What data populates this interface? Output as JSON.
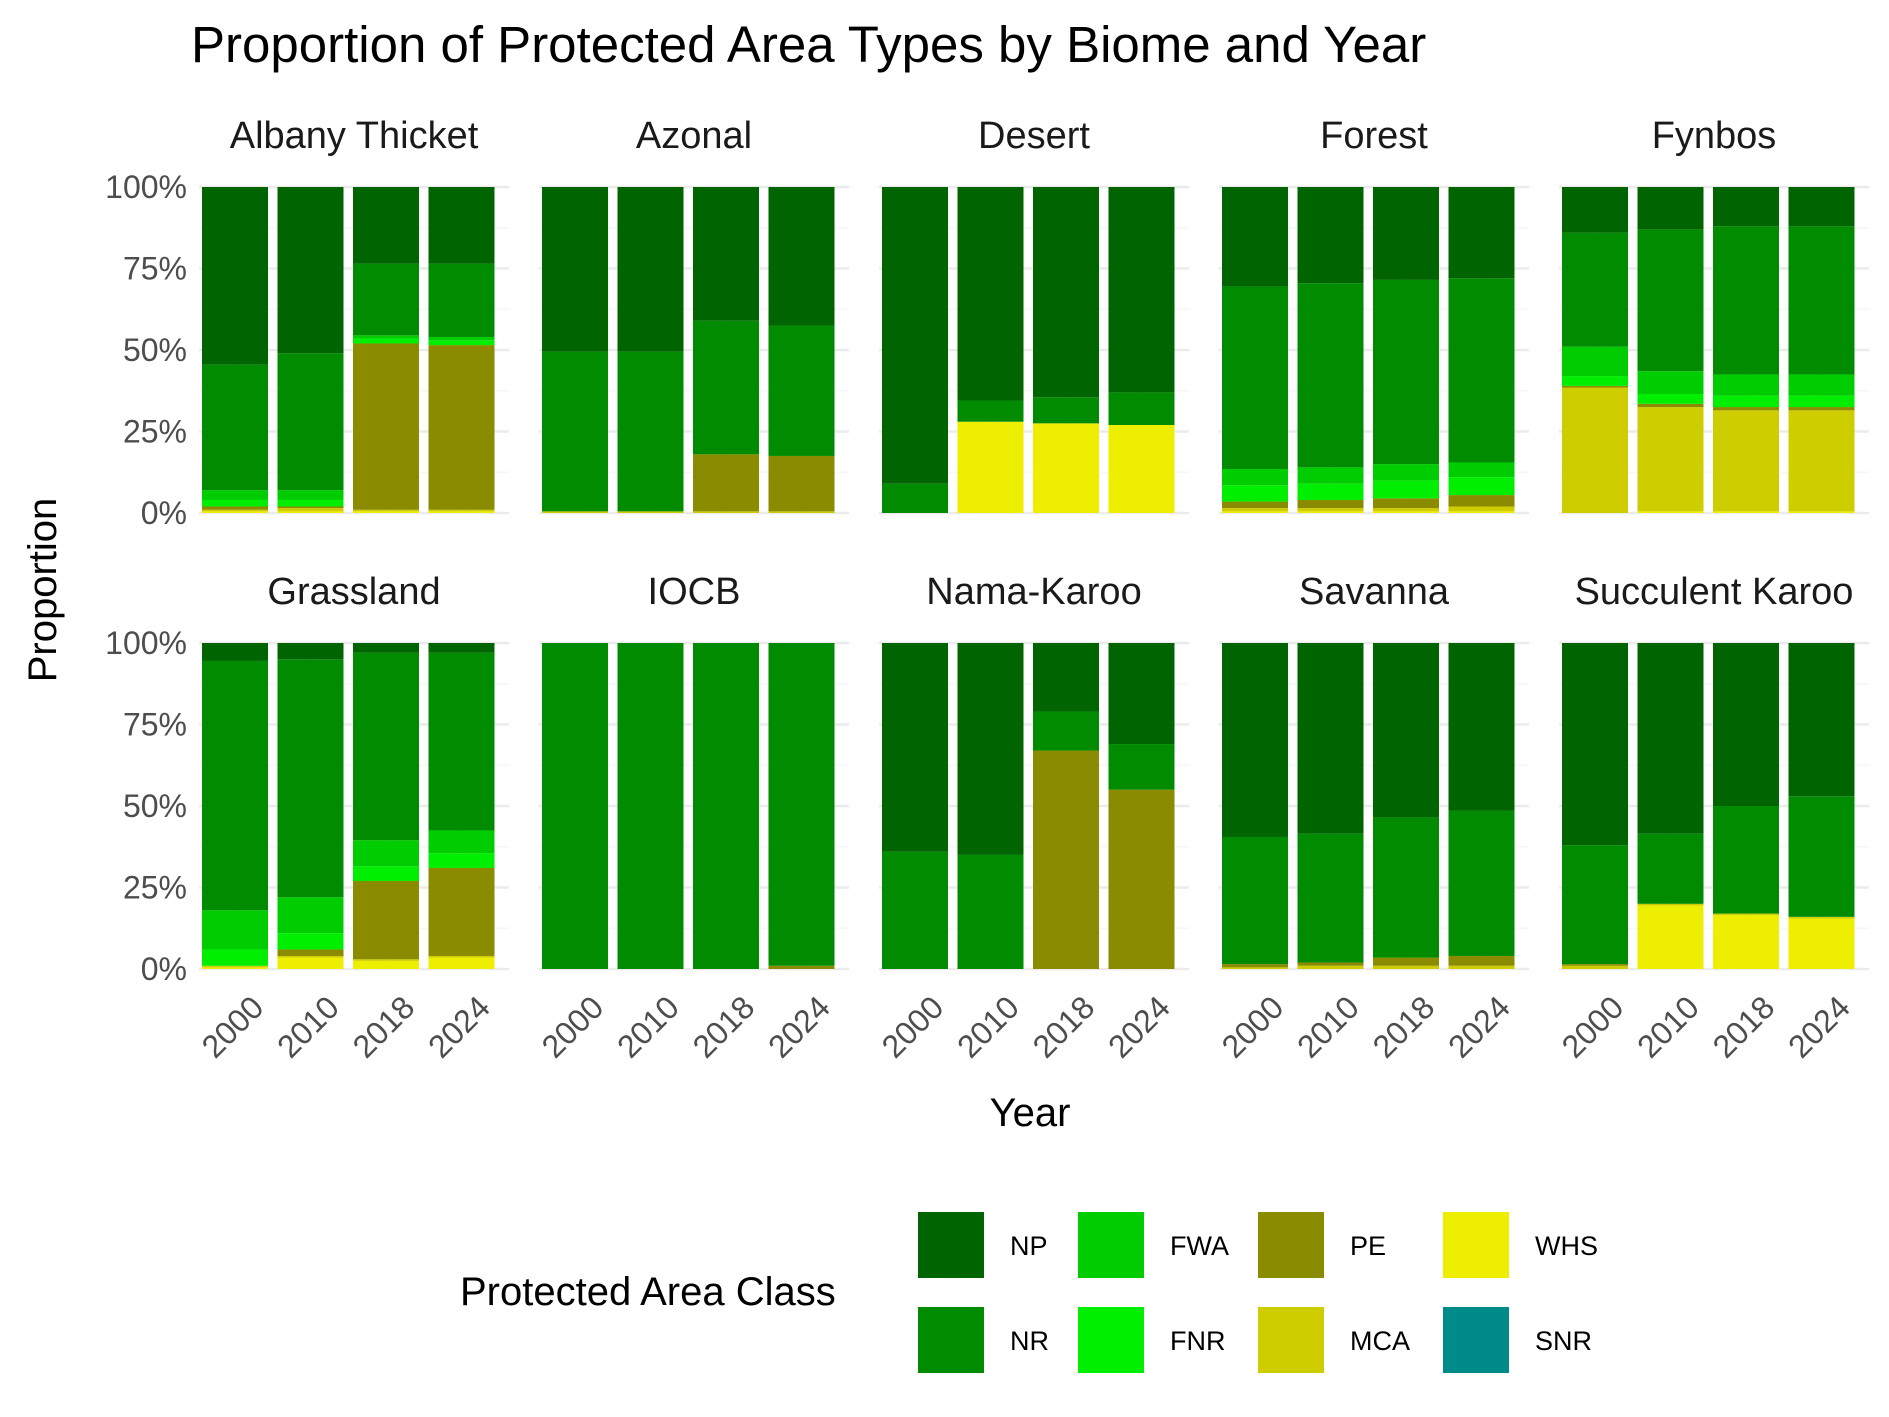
{
  "chart_data": {
    "type": "bar",
    "stacked": true,
    "normalized": true,
    "title": "Proportion of Protected Area Types by Biome and Year",
    "xlabel": "Year",
    "ylabel": "Proportion",
    "ylim": [
      0,
      1
    ],
    "yticks": [
      "0%",
      "25%",
      "50%",
      "75%",
      "100%"
    ],
    "ytick_values": [
      0,
      0.25,
      0.5,
      0.75,
      1
    ],
    "categories": [
      "2000",
      "2010",
      "2018",
      "2024"
    ],
    "grid": true,
    "facet_layout": "2 rows x 5 columns",
    "legend": {
      "title": "Protected Area Class",
      "placement": "bottom",
      "entries": [
        {
          "key": "NP",
          "label": "NP",
          "color": "#006400"
        },
        {
          "key": "NR",
          "label": "NR",
          "color": "#008B00"
        },
        {
          "key": "FWA",
          "label": "FWA",
          "color": "#00CD00"
        },
        {
          "key": "FNR",
          "label": "FNR",
          "color": "#00EE00"
        },
        {
          "key": "PE",
          "label": "PE",
          "color": "#8B8B00"
        },
        {
          "key": "MCA",
          "label": "MCA",
          "color": "#CDCD00"
        },
        {
          "key": "WHS",
          "label": "WHS",
          "color": "#EEEE00"
        },
        {
          "key": "SNR",
          "label": "SNR",
          "color": "#008B8B"
        }
      ]
    },
    "stack_order_bottom_to_top": [
      "WHS",
      "MCA",
      "PE",
      "FNR",
      "FWA",
      "NR",
      "NP"
    ],
    "facets": [
      {
        "biome": "Albany Thicket",
        "values": {
          "2000": {
            "WHS": 0.005,
            "MCA": 0.005,
            "PE": 0.01,
            "FNR": 0.02,
            "FWA": 0.03,
            "NR": 0.385,
            "NP": 0.545
          },
          "2010": {
            "WHS": 0.005,
            "MCA": 0.01,
            "PE": 0.005,
            "FNR": 0.02,
            "FWA": 0.03,
            "NR": 0.42,
            "NP": 0.51
          },
          "2018": {
            "WHS": 0.005,
            "MCA": 0.005,
            "PE": 0.51,
            "FNR": 0.015,
            "FWA": 0.01,
            "NR": 0.22,
            "NP": 0.235
          },
          "2024": {
            "WHS": 0.005,
            "MCA": 0.005,
            "PE": 0.505,
            "FNR": 0.015,
            "FWA": 0.01,
            "NR": 0.225,
            "NP": 0.235
          }
        }
      },
      {
        "biome": "Azonal",
        "values": {
          "2000": {
            "WHS": 0.0,
            "MCA": 0.005,
            "PE": 0.0,
            "FNR": 0.0,
            "FWA": 0.0,
            "NR": 0.49,
            "NP": 0.505
          },
          "2010": {
            "WHS": 0.0,
            "MCA": 0.005,
            "PE": 0.0,
            "FNR": 0.0,
            "FWA": 0.0,
            "NR": 0.49,
            "NP": 0.505
          },
          "2018": {
            "WHS": 0.0,
            "MCA": 0.005,
            "PE": 0.175,
            "FNR": 0.0,
            "FWA": 0.0,
            "NR": 0.41,
            "NP": 0.41
          },
          "2024": {
            "WHS": 0.0,
            "MCA": 0.005,
            "PE": 0.17,
            "FNR": 0.0,
            "FWA": 0.0,
            "NR": 0.4,
            "NP": 0.425
          }
        }
      },
      {
        "biome": "Desert",
        "values": {
          "2000": {
            "WHS": 0.0,
            "MCA": 0.0,
            "PE": 0.0,
            "FNR": 0.0,
            "FWA": 0.0,
            "NR": 0.09,
            "NP": 0.91
          },
          "2010": {
            "WHS": 0.28,
            "MCA": 0.0,
            "PE": 0.0,
            "FNR": 0.0,
            "FWA": 0.0,
            "NR": 0.065,
            "NP": 0.655
          },
          "2018": {
            "WHS": 0.275,
            "MCA": 0.0,
            "PE": 0.0,
            "FNR": 0.0,
            "FWA": 0.0,
            "NR": 0.08,
            "NP": 0.645
          },
          "2024": {
            "WHS": 0.27,
            "MCA": 0.0,
            "PE": 0.0,
            "FNR": 0.0,
            "FWA": 0.0,
            "NR": 0.1,
            "NP": 0.63
          }
        }
      },
      {
        "biome": "Forest",
        "values": {
          "2000": {
            "WHS": 0.005,
            "MCA": 0.01,
            "PE": 0.02,
            "FNR": 0.05,
            "FWA": 0.05,
            "NR": 0.56,
            "NP": 0.305
          },
          "2010": {
            "WHS": 0.005,
            "MCA": 0.01,
            "PE": 0.025,
            "FNR": 0.05,
            "FWA": 0.05,
            "NR": 0.565,
            "NP": 0.295
          },
          "2018": {
            "WHS": 0.005,
            "MCA": 0.01,
            "PE": 0.03,
            "FNR": 0.055,
            "FWA": 0.05,
            "NR": 0.565,
            "NP": 0.285
          },
          "2024": {
            "WHS": 0.005,
            "MCA": 0.015,
            "PE": 0.035,
            "FNR": 0.055,
            "FWA": 0.045,
            "NR": 0.565,
            "NP": 0.28
          }
        }
      },
      {
        "biome": "Fynbos",
        "values": {
          "2000": {
            "WHS": 0.0,
            "MCA": 0.385,
            "PE": 0.005,
            "FNR": 0.03,
            "FWA": 0.09,
            "NR": 0.35,
            "NP": 0.14
          },
          "2010": {
            "WHS": 0.005,
            "MCA": 0.32,
            "PE": 0.01,
            "FNR": 0.03,
            "FWA": 0.07,
            "NR": 0.435,
            "NP": 0.13
          },
          "2018": {
            "WHS": 0.005,
            "MCA": 0.31,
            "PE": 0.01,
            "FNR": 0.035,
            "FWA": 0.065,
            "NR": 0.455,
            "NP": 0.12
          },
          "2024": {
            "WHS": 0.005,
            "MCA": 0.31,
            "PE": 0.01,
            "FNR": 0.035,
            "FWA": 0.065,
            "NR": 0.455,
            "NP": 0.12
          }
        }
      },
      {
        "biome": "Grassland",
        "values": {
          "2000": {
            "WHS": 0.005,
            "MCA": 0.005,
            "PE": 0.0,
            "FNR": 0.05,
            "FWA": 0.12,
            "NR": 0.765,
            "NP": 0.055
          },
          "2010": {
            "WHS": 0.035,
            "MCA": 0.005,
            "PE": 0.02,
            "FNR": 0.05,
            "FWA": 0.11,
            "NR": 0.73,
            "NP": 0.05
          },
          "2018": {
            "WHS": 0.025,
            "MCA": 0.005,
            "PE": 0.24,
            "FNR": 0.045,
            "FWA": 0.08,
            "NR": 0.575,
            "NP": 0.03
          },
          "2024": {
            "WHS": 0.035,
            "MCA": 0.005,
            "PE": 0.27,
            "FNR": 0.045,
            "FWA": 0.07,
            "NR": 0.545,
            "NP": 0.03
          }
        }
      },
      {
        "biome": "IOCB",
        "values": {
          "2000": {
            "WHS": 0.0,
            "MCA": 0.0,
            "PE": 0.0,
            "FNR": 0.0,
            "FWA": 0.0,
            "NR": 1.0,
            "NP": 0.0
          },
          "2010": {
            "WHS": 0.0,
            "MCA": 0.0,
            "PE": 0.0,
            "FNR": 0.0,
            "FWA": 0.0,
            "NR": 1.0,
            "NP": 0.0
          },
          "2018": {
            "WHS": 0.0,
            "MCA": 0.0,
            "PE": 0.0,
            "FNR": 0.0,
            "FWA": 0.0,
            "NR": 1.0,
            "NP": 0.0
          },
          "2024": {
            "WHS": 0.0,
            "MCA": 0.0,
            "PE": 0.01,
            "FNR": 0.0,
            "FWA": 0.0,
            "NR": 0.99,
            "NP": 0.0
          }
        }
      },
      {
        "biome": "Nama-Karoo",
        "values": {
          "2000": {
            "WHS": 0.0,
            "MCA": 0.0,
            "PE": 0.0,
            "FNR": 0.0,
            "FWA": 0.0,
            "NR": 0.36,
            "NP": 0.64
          },
          "2010": {
            "WHS": 0.0,
            "MCA": 0.0,
            "PE": 0.0,
            "FNR": 0.0,
            "FWA": 0.0,
            "NR": 0.35,
            "NP": 0.65
          },
          "2018": {
            "WHS": 0.0,
            "MCA": 0.0,
            "PE": 0.67,
            "FNR": 0.0,
            "FWA": 0.0,
            "NR": 0.12,
            "NP": 0.21
          },
          "2024": {
            "WHS": 0.0,
            "MCA": 0.0,
            "PE": 0.55,
            "FNR": 0.0,
            "FWA": 0.0,
            "NR": 0.14,
            "NP": 0.31
          }
        }
      },
      {
        "biome": "Savanna",
        "values": {
          "2000": {
            "WHS": 0.0,
            "MCA": 0.005,
            "PE": 0.01,
            "FNR": 0.0,
            "FWA": 0.0,
            "NR": 0.39,
            "NP": 0.595
          },
          "2010": {
            "WHS": 0.0,
            "MCA": 0.01,
            "PE": 0.01,
            "FNR": 0.0,
            "FWA": 0.0,
            "NR": 0.395,
            "NP": 0.585
          },
          "2018": {
            "WHS": 0.0,
            "MCA": 0.01,
            "PE": 0.025,
            "FNR": 0.0,
            "FWA": 0.0,
            "NR": 0.43,
            "NP": 0.535
          },
          "2024": {
            "WHS": 0.0,
            "MCA": 0.01,
            "PE": 0.03,
            "FNR": 0.0,
            "FWA": 0.0,
            "NR": 0.445,
            "NP": 0.515
          }
        }
      },
      {
        "biome": "Succulent Karoo",
        "values": {
          "2000": {
            "WHS": 0.0,
            "MCA": 0.01,
            "PE": 0.005,
            "FNR": 0.0,
            "FWA": 0.0,
            "NR": 0.365,
            "NP": 0.62
          },
          "2010": {
            "WHS": 0.195,
            "MCA": 0.005,
            "PE": 0.0,
            "FNR": 0.0,
            "FWA": 0.0,
            "NR": 0.215,
            "NP": 0.585
          },
          "2018": {
            "WHS": 0.165,
            "MCA": 0.005,
            "PE": 0.0,
            "FNR": 0.0,
            "FWA": 0.0,
            "NR": 0.33,
            "NP": 0.5
          },
          "2024": {
            "WHS": 0.155,
            "MCA": 0.005,
            "PE": 0.0,
            "FNR": 0.0,
            "FWA": 0.0,
            "NR": 0.37,
            "NP": 0.47
          }
        }
      }
    ]
  }
}
